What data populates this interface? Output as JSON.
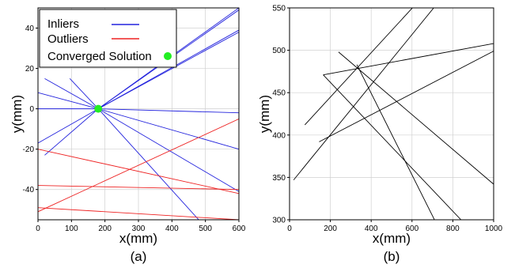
{
  "chart_data": [
    {
      "type": "line",
      "caption": "(a)",
      "xlabel": "x(mm)",
      "ylabel": "y(mm)",
      "xlim": [
        0,
        600
      ],
      "ylim": [
        -55,
        50
      ],
      "xticks": [
        0,
        100,
        200,
        300,
        400,
        500,
        600
      ],
      "yticks": [
        -40,
        -20,
        0,
        20,
        40
      ],
      "grid": true,
      "legend_position": "top-left",
      "legend": [
        {
          "label": "Inliers",
          "color": "#2222dd",
          "marker": "line"
        },
        {
          "label": "Outliers",
          "color": "#ee2222",
          "marker": "line"
        },
        {
          "label": "Converged Solution",
          "color": "#22ee22",
          "marker": "dot"
        }
      ],
      "converged_solution": {
        "x": 180,
        "y": 0
      },
      "series": [
        {
          "group": "Inliers",
          "color": "#2222dd",
          "segments": [
            [
              [
                180,
                0
              ],
              [
                600,
                49
              ]
            ],
            [
              [
                180,
                0
              ],
              [
                600,
                39
              ]
            ],
            [
              [
                180,
                0
              ],
              [
                600,
                38
              ]
            ],
            [
              [
                0,
                -17
              ],
              [
                180,
                0
              ]
            ],
            [
              [
                0,
                8
              ],
              [
                180,
                0
              ]
            ],
            [
              [
                20,
                15
              ],
              [
                180,
                0
              ]
            ],
            [
              [
                95,
                15
              ],
              [
                180,
                0
              ]
            ],
            [
              [
                0,
                0
              ],
              [
                180,
                0
              ]
            ],
            [
              [
                180,
                0
              ],
              [
                600,
                -2
              ]
            ],
            [
              [
                180,
                0
              ],
              [
                600,
                -20
              ]
            ],
            [
              [
                180,
                0
              ],
              [
                600,
                -41
              ]
            ],
            [
              [
                180,
                0
              ],
              [
                480,
                -55
              ]
            ],
            [
              [
                20,
                -23
              ],
              [
                180,
                0
              ]
            ],
            [
              [
                180,
                0
              ],
              [
                600,
                50
              ]
            ]
          ]
        },
        {
          "group": "Outliers",
          "color": "#ee2222",
          "segments": [
            [
              [
                0,
                -51
              ],
              [
                600,
                -5
              ]
            ],
            [
              [
                0,
                -20
              ],
              [
                600,
                -42
              ]
            ],
            [
              [
                0,
                -38
              ],
              [
                600,
                -40
              ]
            ],
            [
              [
                0,
                -49
              ],
              [
                600,
                -55
              ]
            ]
          ]
        }
      ]
    },
    {
      "type": "line",
      "caption": "(b)",
      "xlabel": "x(mm)",
      "ylabel": "y(mm)",
      "xlim": [
        0,
        1000
      ],
      "ylim": [
        300,
        550
      ],
      "xticks": [
        0,
        200,
        400,
        600,
        800,
        1000
      ],
      "yticks": [
        300,
        350,
        400,
        450,
        500,
        550
      ],
      "grid": true,
      "series": [
        {
          "color": "#000000",
          "segments": [
            [
              [
                20,
                347
              ],
              [
                740,
                560
              ]
            ],
            [
              [
                75,
                412
              ],
              [
                640,
                560
              ]
            ],
            [
              [
                165,
                471
              ],
              [
                1000,
                508
              ]
            ],
            [
              [
                145,
                392
              ],
              [
                1000,
                499
              ]
            ],
            [
              [
                165,
                471
              ],
              [
                840,
                300
              ]
            ],
            [
              [
                240,
                498
              ],
              [
                1000,
                342
              ]
            ],
            [
              [
                330,
                483
              ],
              [
                710,
                300
              ]
            ]
          ]
        }
      ]
    }
  ]
}
